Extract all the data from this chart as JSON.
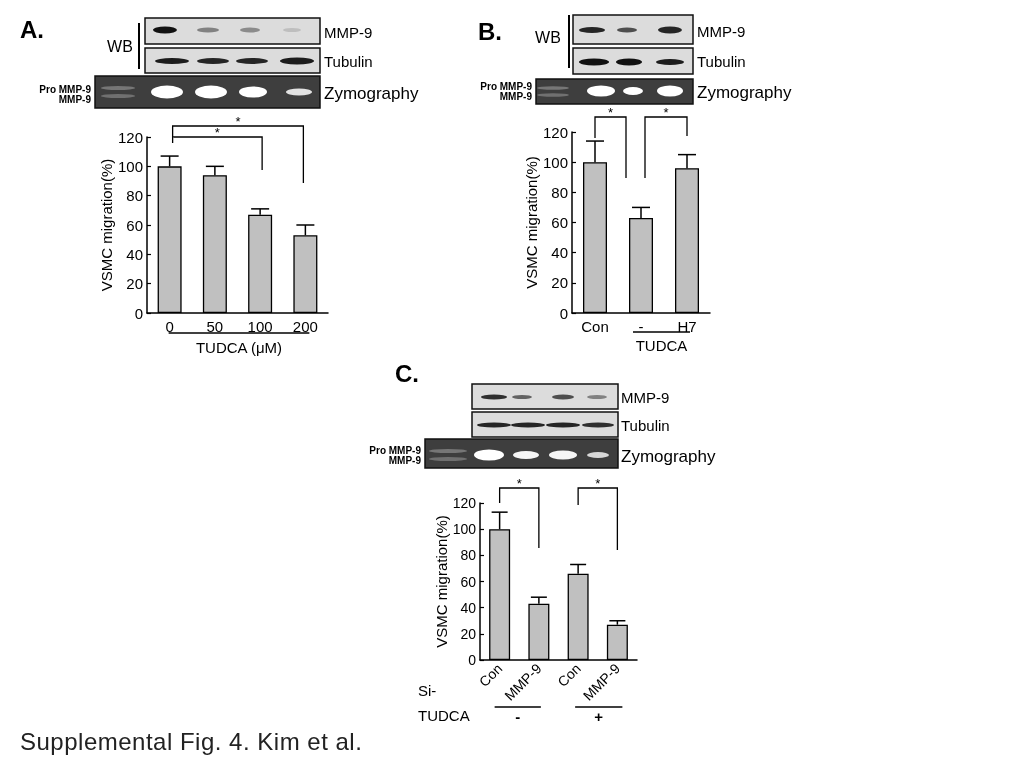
{
  "chart_data": [
    {
      "type": "bar",
      "title": "A.",
      "categories": [
        "0",
        "50",
        "100",
        "200"
      ],
      "values": [
        100,
        94,
        67,
        53
      ],
      "errors": [
        7,
        6,
        4,
        7
      ],
      "color": "#c0c0c0",
      "ylabel": "VSMC migration(%)",
      "xlabel": "TUDCA (μM)",
      "ylim": [
        0,
        120
      ],
      "yticks": [
        0,
        20,
        40,
        60,
        80,
        100,
        120
      ],
      "annotations": [
        "*",
        "*",
        "WB",
        "MMP-9",
        "Tubulin",
        "Pro MMP-9",
        "MMP-9",
        "Zymography"
      ]
    },
    {
      "type": "bar",
      "title": "B.",
      "categories": [
        "Con",
        "-",
        "H7"
      ],
      "values": [
        100,
        63,
        96
      ],
      "errors": [
        14,
        7,
        9
      ],
      "color": "#c0c0c0",
      "ylabel": "VSMC migration(%)",
      "xlabel": "TUDCA",
      "ylim": [
        0,
        120
      ],
      "yticks": [
        0,
        20,
        40,
        60,
        80,
        100,
        120
      ],
      "annotations": [
        "*",
        "*",
        "WB",
        "MMP-9",
        "Tubulin",
        "Pro MMP-9",
        "MMP-9",
        "Zymography"
      ]
    },
    {
      "type": "bar",
      "title": "C.",
      "categories": [
        "Con",
        "MMP-9",
        "Con",
        "MMP-9"
      ],
      "values": [
        100,
        43,
        66,
        27
      ],
      "errors": [
        13,
        5,
        7,
        3
      ],
      "color": "#c0c0c0",
      "ylabel": "VSMC migration(%)",
      "xlabel": "TUDCA",
      "ylim": [
        0,
        120
      ],
      "yticks": [
        0,
        20,
        40,
        60,
        80,
        100,
        120
      ],
      "annotations": [
        "*",
        "*",
        "MMP-9",
        "Tubulin",
        "Pro MMP-9",
        "MMP-9",
        "Zymography",
        "Si-",
        "-",
        "+",
        "Supplemental Fig. 4. Kim et al."
      ]
    }
  ]
}
